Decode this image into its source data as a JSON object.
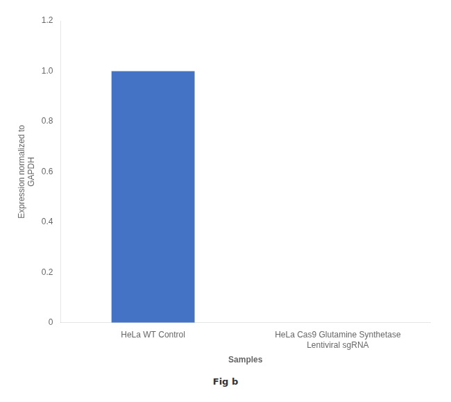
{
  "chart_data": {
    "type": "bar",
    "categories": [
      "HeLa WT Control",
      "HeLa Cas9 Glutamine Synthetase\nLentiviral sgRNA"
    ],
    "values": [
      1.0,
      0.0
    ],
    "color": "#4472c4",
    "xlabel": "Samples",
    "ylabel": "Expression normalized to\nGAPDH",
    "ylim": [
      0,
      1.2
    ],
    "yticks": [
      0,
      0.2,
      0.4,
      0.6,
      0.8,
      {
        "value": 1,
        "label": "1.0"
      },
      1.2
    ],
    "grid": false,
    "annotations": [
      "Fig b"
    ]
  }
}
